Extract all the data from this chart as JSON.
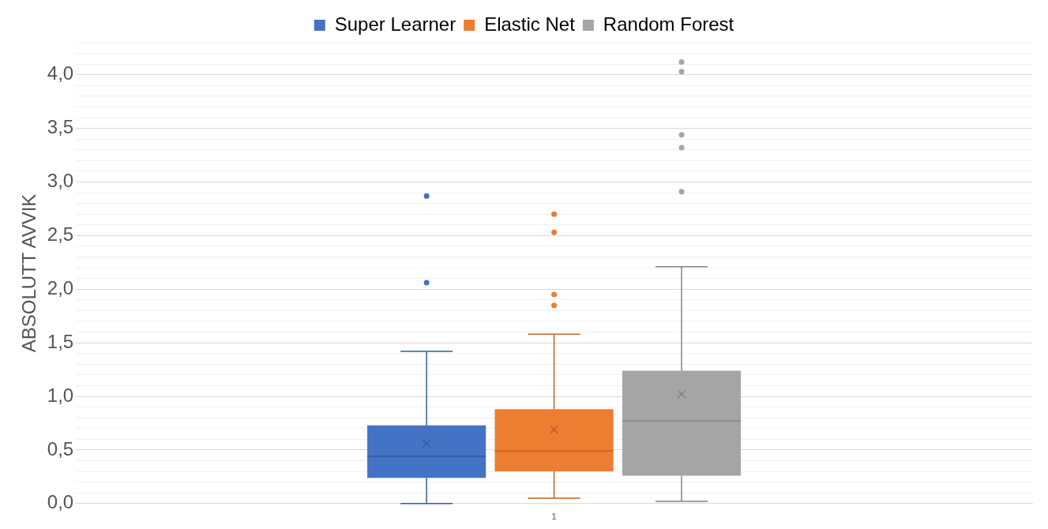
{
  "chart_data": {
    "type": "box",
    "categories": [
      "1"
    ],
    "ylabel": "ABSOLUTT AVVIK",
    "ylim": [
      0,
      4.3
    ],
    "yticks": [
      {
        "value": 0,
        "label": "0,0"
      },
      {
        "value": 0.1,
        "label": null
      },
      {
        "value": 0.2,
        "label": null
      },
      {
        "value": 0.3,
        "label": null
      },
      {
        "value": 0.4,
        "label": null
      },
      {
        "value": 0.5,
        "label": "0,5"
      },
      {
        "value": 0.6,
        "label": null
      },
      {
        "value": 0.7,
        "label": null
      },
      {
        "value": 0.8,
        "label": null
      },
      {
        "value": 0.9,
        "label": null
      },
      {
        "value": 1,
        "label": "1,0"
      },
      {
        "value": 1.1,
        "label": null
      },
      {
        "value": 1.2,
        "label": null
      },
      {
        "value": 1.3,
        "label": null
      },
      {
        "value": 1.4,
        "label": null
      },
      {
        "value": 1.5,
        "label": "1,5"
      },
      {
        "value": 1.6,
        "label": null
      },
      {
        "value": 1.7,
        "label": null
      },
      {
        "value": 1.8,
        "label": null
      },
      {
        "value": 1.9,
        "label": null
      },
      {
        "value": 2,
        "label": "2,0"
      },
      {
        "value": 2.1,
        "label": null
      },
      {
        "value": 2.2,
        "label": null
      },
      {
        "value": 2.3,
        "label": null
      },
      {
        "value": 2.4,
        "label": null
      },
      {
        "value": 2.5,
        "label": "2,5"
      },
      {
        "value": 2.6,
        "label": null
      },
      {
        "value": 2.7,
        "label": null
      },
      {
        "value": 2.8,
        "label": null
      },
      {
        "value": 2.9,
        "label": null
      },
      {
        "value": 3,
        "label": "3,0"
      },
      {
        "value": 3.1,
        "label": null
      },
      {
        "value": 3.2,
        "label": null
      },
      {
        "value": 3.3,
        "label": null
      },
      {
        "value": 3.4,
        "label": null
      },
      {
        "value": 3.5,
        "label": "3,5"
      },
      {
        "value": 3.6,
        "label": null
      },
      {
        "value": 3.7,
        "label": null
      },
      {
        "value": 3.8,
        "label": null
      },
      {
        "value": 3.9,
        "label": null
      },
      {
        "value": 4,
        "label": "4,0"
      },
      {
        "value": 4.1,
        "label": null
      },
      {
        "value": 4.2,
        "label": null
      },
      {
        "value": 4.3,
        "label": null
      }
    ],
    "grid": "y",
    "legend": "top",
    "series": [
      {
        "name": "Super Learner",
        "color": "#4472c4",
        "boxes": [
          {
            "low": 0.0,
            "q1": 0.24,
            "median": 0.44,
            "q3": 0.73,
            "high": 1.42,
            "mean": 0.56,
            "outliers": [
              2.06,
              2.87
            ]
          }
        ]
      },
      {
        "name": "Elastic Net",
        "color": "#ed7d31",
        "boxes": [
          {
            "low": 0.05,
            "q1": 0.3,
            "median": 0.49,
            "q3": 0.88,
            "high": 1.58,
            "mean": 0.69,
            "outliers": [
              1.85,
              1.95,
              2.53,
              2.7
            ]
          }
        ]
      },
      {
        "name": "Random Forest",
        "color": "#a5a5a5",
        "boxes": [
          {
            "low": 0.02,
            "q1": 0.26,
            "median": 0.77,
            "q3": 1.24,
            "high": 2.21,
            "mean": 1.02,
            "outliers": [
              2.91,
              3.32,
              3.44,
              4.03,
              4.12
            ]
          }
        ]
      }
    ]
  }
}
